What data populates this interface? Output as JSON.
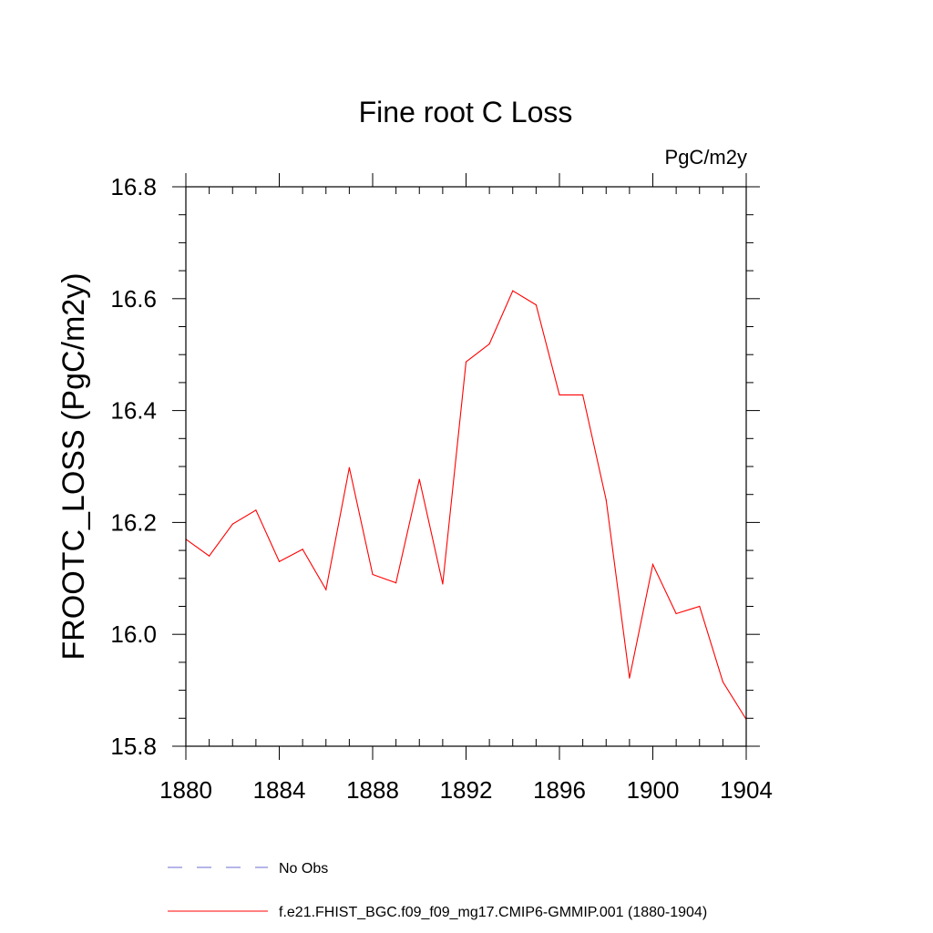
{
  "chart_data": {
    "type": "line",
    "title": "Fine root C Loss",
    "units_label": "PgC/m2y",
    "ylabel": "FROOTC_LOSS  (PgC/m2y)",
    "xlabel": "",
    "xlim": [
      1880,
      1904
    ],
    "ylim": [
      15.8,
      16.8
    ],
    "x_ticks": [
      1880,
      1884,
      1888,
      1892,
      1896,
      1900,
      1904
    ],
    "x_tick_labels": [
      "1880",
      "1884",
      "1888",
      "1892",
      "1896",
      "1900",
      "1904"
    ],
    "y_ticks": [
      15.8,
      16.0,
      16.2,
      16.4,
      16.6,
      16.8
    ],
    "y_tick_labels": [
      "15.8",
      "16.0",
      "16.2",
      "16.4",
      "16.6",
      "16.8"
    ],
    "x_minor_step": 1,
    "y_minor_step": 0.05,
    "grid": false,
    "legend_position": "bottom",
    "series": [
      {
        "name": "f.e21.FHIST_BGC.f09_f09_mg17.CMIP6-GMMIP.001 (1880-1904)",
        "color": "#ff0000",
        "style": "solid",
        "x": [
          1880,
          1881,
          1882,
          1883,
          1884,
          1885,
          1886,
          1887,
          1888,
          1889,
          1890,
          1891,
          1892,
          1893,
          1894,
          1895,
          1896,
          1897,
          1898,
          1899,
          1900,
          1901,
          1902,
          1903,
          1904
        ],
        "values": [
          16.17,
          16.14,
          16.197,
          16.222,
          16.13,
          16.152,
          16.08,
          16.298,
          16.107,
          16.092,
          16.277,
          16.09,
          16.487,
          16.519,
          16.614,
          16.589,
          16.428,
          16.428,
          16.24,
          15.922,
          16.125,
          16.037,
          16.05,
          15.915,
          15.848
        ]
      }
    ],
    "legend": [
      {
        "label": "No Obs",
        "color": "#6b6bd6",
        "style": "dashed"
      },
      {
        "label": "f.e21.FHIST_BGC.f09_f09_mg17.CMIP6-GMMIP.001 (1880-1904)",
        "color": "#ff0000",
        "style": "solid"
      }
    ]
  }
}
